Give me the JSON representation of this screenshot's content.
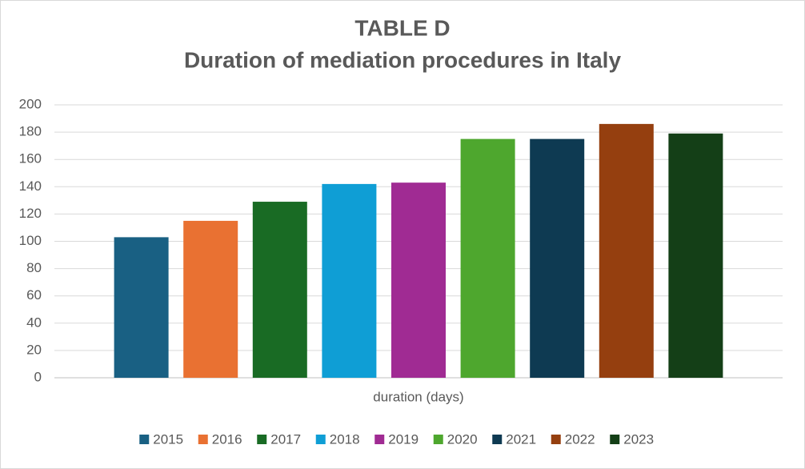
{
  "chart_data": {
    "type": "bar",
    "title": "TABLE D",
    "subtitle": "Duration of mediation procedures in Italy",
    "categories": [
      "duration (days)"
    ],
    "series": [
      {
        "name": "2015",
        "color": "#196083",
        "values": [
          103
        ]
      },
      {
        "name": "2016",
        "color": "#e97132",
        "values": [
          115
        ]
      },
      {
        "name": "2017",
        "color": "#196b24",
        "values": [
          129
        ]
      },
      {
        "name": "2018",
        "color": "#0f9ed5",
        "values": [
          142
        ]
      },
      {
        "name": "2019",
        "color": "#a02b93",
        "values": [
          143
        ]
      },
      {
        "name": "2020",
        "color": "#4ea72e",
        "values": [
          175
        ]
      },
      {
        "name": "2021",
        "color": "#0e3a52",
        "values": [
          175
        ]
      },
      {
        "name": "2022",
        "color": "#953f0f",
        "values": [
          186
        ]
      },
      {
        "name": "2023",
        "color": "#143f17",
        "values": [
          179
        ]
      }
    ],
    "ylim": [
      0,
      200
    ],
    "yticks": [
      0,
      20,
      40,
      60,
      80,
      100,
      120,
      140,
      160,
      180,
      200
    ],
    "grid": true,
    "legend": "bottom"
  }
}
